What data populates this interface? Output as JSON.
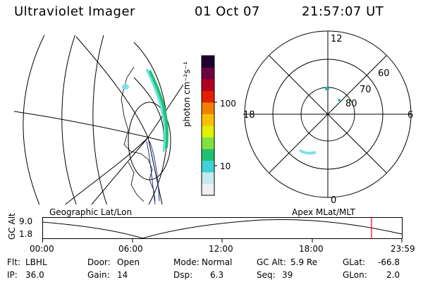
{
  "header": {
    "title": "Ultraviolet Imager",
    "date": "01 Oct 07",
    "time": "21:57:07 UT"
  },
  "colorbar": {
    "unit_label": "photon cm⁻²s⁻¹",
    "ticks": [
      "100",
      "10"
    ],
    "colors": [
      "#f0f0f0",
      "#c8e8f0",
      "#40d0d8",
      "#20c070",
      "#80e040",
      "#e0f000",
      "#f8c000",
      "#f08000",
      "#e02000",
      "#b00020",
      "#700040",
      "#200030"
    ]
  },
  "panels": {
    "geo_label": "Geographic Lat/Lon",
    "apex_label": "Apex MLat/MLT"
  },
  "polar": {
    "mlt_labels": [
      "12",
      "18",
      "6",
      "0"
    ],
    "lat_labels": [
      "60",
      "70",
      "80"
    ]
  },
  "altitude": {
    "axis_label": "GC Alt",
    "ticks": [
      "9.0",
      "1.8"
    ],
    "time_ticks": [
      "00:00",
      "06:00",
      "12:00",
      "18:00",
      "23:59"
    ],
    "marker_color": "#ff0000"
  },
  "info": {
    "flt_label": "Flt:",
    "flt_value": "LBHL",
    "ip_label": "IP:",
    "ip_value": "36.0",
    "door_label": "Door:",
    "door_value": "Open",
    "gain_label": "Gain:",
    "gain_value": "14",
    "mode_label": "Mode:",
    "mode_value": "Normal",
    "dsp_label": "Dsp:",
    "dsp_value": "6.3",
    "gcalt_label": "GC Alt:",
    "gcalt_value": "5.9 Re",
    "seq_label": "Seq:",
    "seq_value": "39",
    "glat_label": "GLat:",
    "glat_value": "-66.8",
    "glon_label": "GLon:",
    "glon_value": "2.0"
  }
}
